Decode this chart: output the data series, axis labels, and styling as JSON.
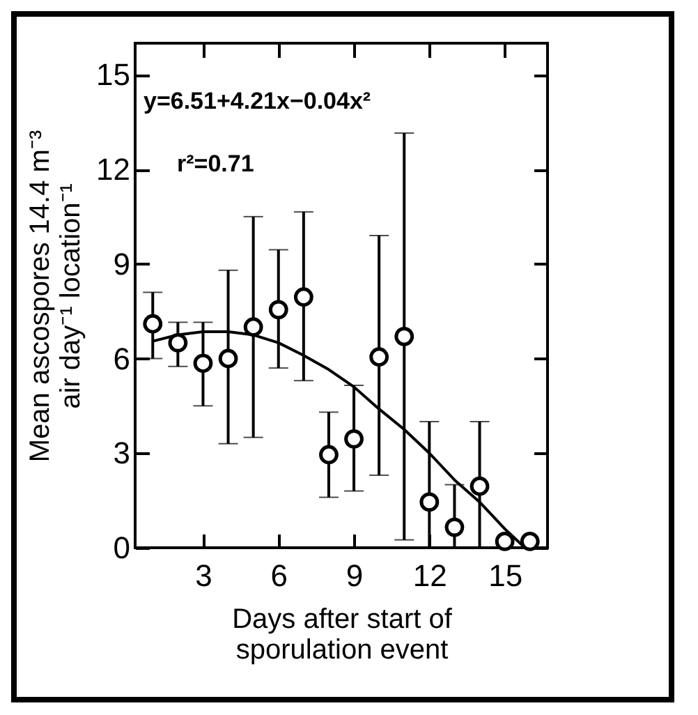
{
  "chart_data": {
    "type": "scatter",
    "xlabel": "Days after start of\nsporulation event",
    "ylabel": "Mean ascospores 14.4 m⁻³\nair day⁻¹ location⁻¹",
    "annotations": [
      "y=6.51+4.21x−0.04x²",
      "r²=0.71"
    ],
    "xlim": [
      0.3,
      16.7
    ],
    "xticks": [
      3,
      6,
      9,
      12,
      15
    ],
    "ylim": [
      0,
      16
    ],
    "yticks": [
      0,
      3,
      6,
      9,
      12,
      15
    ],
    "grid": false,
    "marker": "circle",
    "series": [
      {
        "color": "#000000",
        "x": [
          1,
          2,
          3,
          4,
          5,
          6,
          7,
          8,
          9,
          10,
          11,
          12,
          13,
          14,
          15,
          16
        ],
        "values": [
          7.1,
          6.5,
          5.85,
          6.0,
          7.0,
          7.55,
          7.95,
          2.95,
          3.45,
          6.05,
          6.7,
          1.45,
          0.65,
          1.95,
          0.2,
          0.2
        ],
        "errors": [
          [
            6.0,
            8.1
          ],
          [
            5.75,
            7.15
          ],
          [
            4.5,
            7.15
          ],
          [
            3.3,
            8.8
          ],
          [
            3.5,
            10.5
          ],
          [
            5.7,
            9.45
          ],
          [
            5.3,
            10.65
          ],
          [
            1.6,
            4.3
          ],
          [
            1.8,
            5.15
          ],
          [
            2.3,
            9.9
          ],
          [
            0.25,
            13.15
          ],
          [
            0,
            4.0
          ],
          [
            0,
            2.0
          ],
          [
            0,
            4.0
          ],
          null,
          null
        ]
      },
      {
        "type": "line",
        "color": "#000000",
        "line_style": "solid",
        "marker": "none",
        "x": [
          1,
          2,
          3,
          4,
          5,
          6,
          7,
          8,
          9,
          10,
          11,
          12,
          13,
          14,
          15,
          15.8
        ],
        "values": [
          6.55,
          6.75,
          6.85,
          6.85,
          6.75,
          6.5,
          6.1,
          5.65,
          5.1,
          4.4,
          3.75,
          3.0,
          2.15,
          1.45,
          0.6,
          0
        ]
      }
    ]
  }
}
